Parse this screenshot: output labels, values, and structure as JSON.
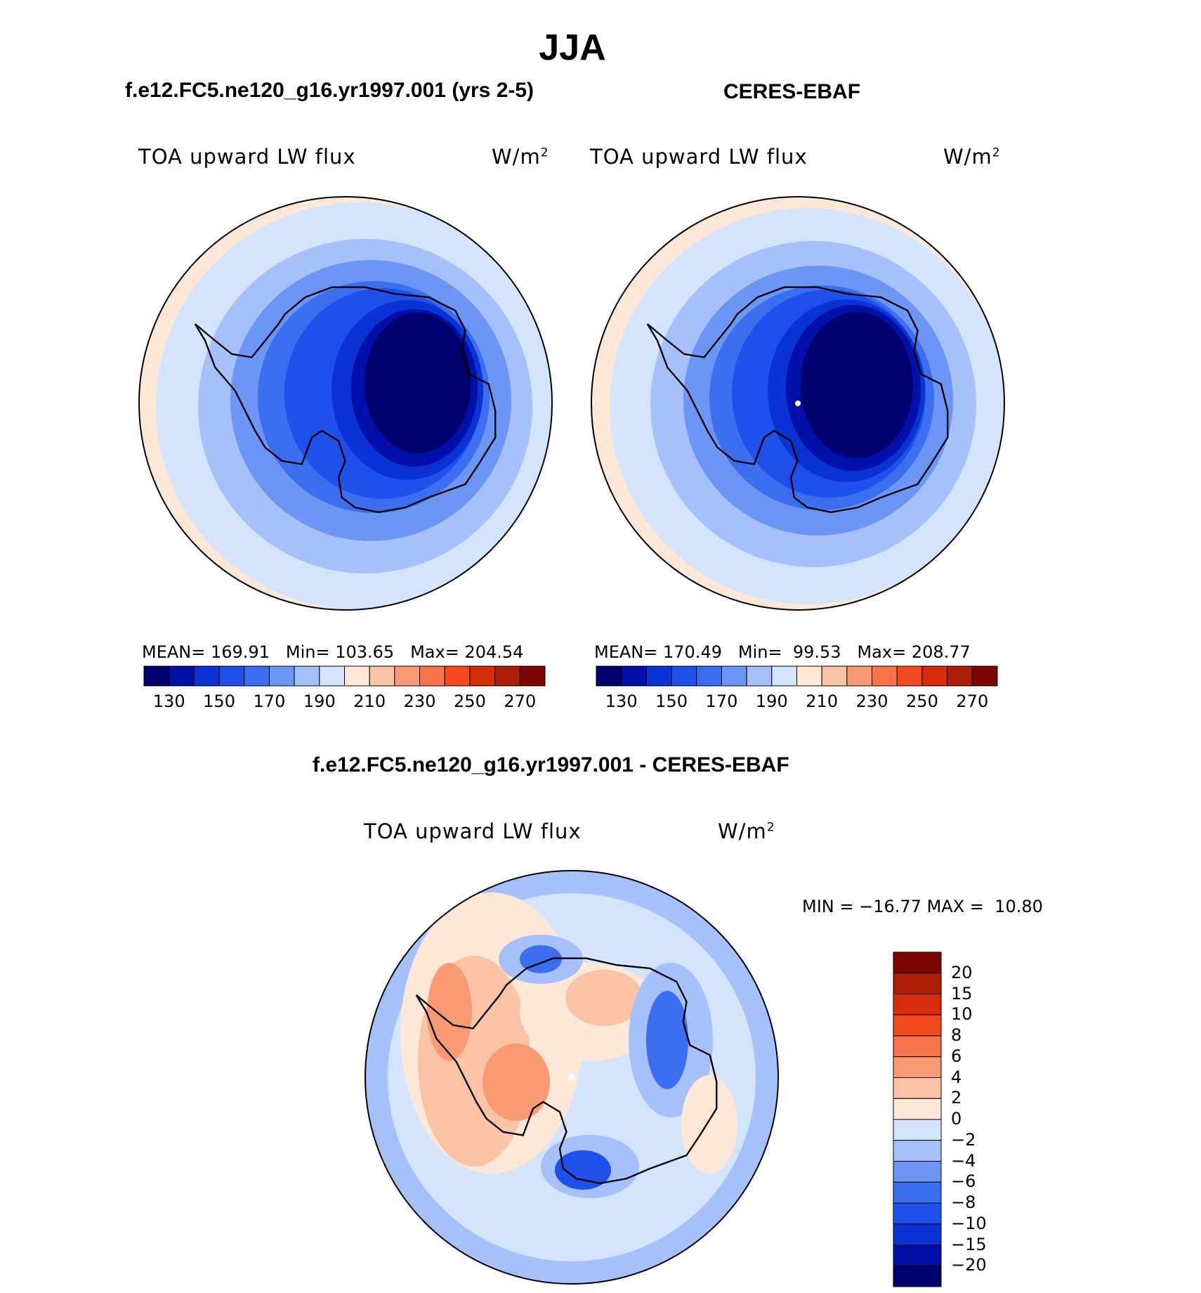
{
  "figure": {
    "season": "JJA",
    "model_title": "f.e12.FC5.ne120_g16.yr1997.001 (yrs 2-5)",
    "obs_title": "CERES-EBAF",
    "diff_title": "f.e12.FC5.ne120_g16.yr1997.001 - CERES-EBAF"
  },
  "panels": {
    "model": {
      "variable": "TOA upward LW flux",
      "units": "W/m",
      "units_exp": "2",
      "mean_label": "MEAN=",
      "mean_value": "169.91",
      "min_label": "Min=",
      "min_value": "103.65",
      "max_label": "Max=",
      "max_value": "204.54"
    },
    "obs": {
      "variable": "TOA upward LW flux",
      "units": "W/m",
      "units_exp": "2",
      "mean_label": "MEAN=",
      "mean_value": "170.49",
      "min_label": "Min=",
      "min_value": "99.53",
      "max_label": "Max=",
      "max_value": "208.77"
    },
    "diff": {
      "variable": "TOA upward LW flux",
      "units": "W/m",
      "units_exp": "2",
      "min_label": "MIN =",
      "min_value": "−16.77",
      "max_label": "MAX =",
      "max_value": "10.80"
    }
  },
  "colorbars": {
    "abs": {
      "colors": [
        "#00006e",
        "#0010a8",
        "#0a32d4",
        "#1f50eb",
        "#3c6ef0",
        "#6c96f5",
        "#a5c0fa",
        "#d4e4fc",
        "#fde8d7",
        "#fac3a6",
        "#f99a75",
        "#f9744a",
        "#f44a1f",
        "#d72c0a",
        "#ae1d05",
        "#7c0602"
      ],
      "tick_labels": [
        "130",
        "150",
        "170",
        "190",
        "210",
        "230",
        "250",
        "270"
      ]
    },
    "diff": {
      "colors_top_to_bottom": [
        "#7c0602",
        "#ae1d05",
        "#d72c0a",
        "#f44a1f",
        "#f9744a",
        "#f99a75",
        "#fac3a6",
        "#fde8d7",
        "#d4e4fc",
        "#a5c0fa",
        "#6c96f5",
        "#3c6ef0",
        "#1f50eb",
        "#0a32d4",
        "#0010a8",
        "#00006e"
      ],
      "tick_labels_top_to_bottom": [
        "20",
        "15",
        "10",
        "8",
        "6",
        "4",
        "2",
        "0",
        "−2",
        "−4",
        "−6",
        "−8",
        "−10",
        "−15",
        "−20"
      ]
    }
  }
}
